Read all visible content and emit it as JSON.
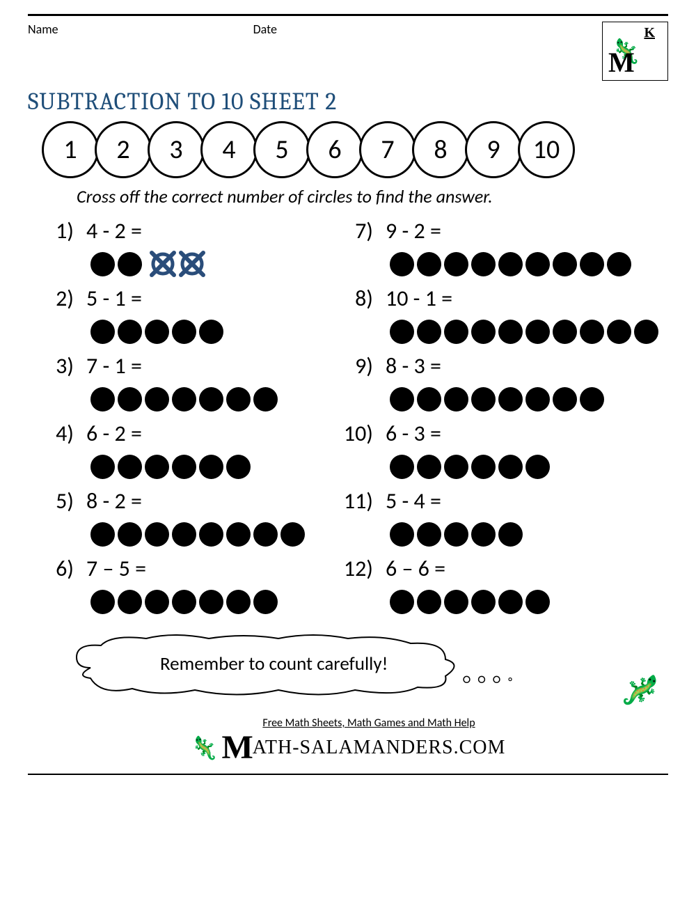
{
  "header": {
    "name_label": "Name",
    "date_label": "Date",
    "grade_letter": "K"
  },
  "title": "SUBTRACTION TO 10 SHEET 2",
  "number_line": [
    1,
    2,
    3,
    4,
    5,
    6,
    7,
    8,
    9,
    10
  ],
  "instruction": "Cross off the correct number of circles to find the answer.",
  "problems": [
    {
      "n": "1)",
      "expr": "4 - 2 =",
      "dots": 4,
      "crossed": [
        2,
        3
      ]
    },
    {
      "n": "7)",
      "expr": "9 - 2 =",
      "dots": 9,
      "crossed": []
    },
    {
      "n": "2)",
      "expr": "5 - 1 =",
      "dots": 5,
      "crossed": []
    },
    {
      "n": "8)",
      "expr": "10 - 1 =",
      "dots": 10,
      "crossed": []
    },
    {
      "n": "3)",
      "expr": "7 - 1 =",
      "dots": 7,
      "crossed": []
    },
    {
      "n": "9)",
      "expr": "8 - 3 =",
      "dots": 8,
      "crossed": []
    },
    {
      "n": "4)",
      "expr": "6 - 2 =",
      "dots": 6,
      "crossed": []
    },
    {
      "n": "10)",
      "expr": "6 - 3 =",
      "dots": 6,
      "crossed": []
    },
    {
      "n": "5)",
      "expr": "8 - 2 =",
      "dots": 8,
      "crossed": []
    },
    {
      "n": "11)",
      "expr": "5 - 4 =",
      "dots": 5,
      "crossed": []
    },
    {
      "n": "6)",
      "expr": "7 – 5 =",
      "dots": 7,
      "crossed": []
    },
    {
      "n": "12)",
      "expr": "6 – 6 =",
      "dots": 6,
      "crossed": []
    }
  ],
  "reminder": "Remember to count carefully!",
  "footer": {
    "line1": "Free Math Sheets, Math Games and Math Help",
    "brand": "ATH-SALAMANDERS.COM"
  },
  "style": {
    "title_color": "#1f4e79",
    "dot_color": "#000000",
    "cross_color": "#2a4d7a",
    "circle_border": "#000000",
    "page_bg": "#ffffff",
    "title_fontsize": 34,
    "body_fontsize": 32,
    "dot_diameter": 35,
    "numcircle_diameter": 82
  }
}
